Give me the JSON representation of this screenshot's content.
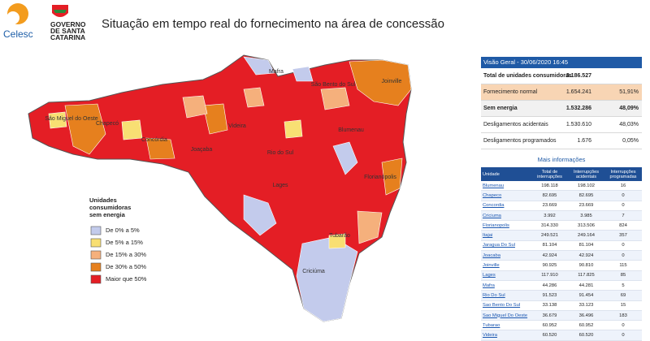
{
  "header": {
    "brand": "Celesc",
    "government": [
      "GOVERNO",
      "DE SANTA",
      "CATARINA"
    ],
    "title": "Situação em tempo real do fornecimento na área de concessão"
  },
  "map": {
    "labels": [
      "Mafra",
      "São Bento do Sul",
      "Joinville",
      "São Miguel do Oeste",
      "Chapecó",
      "Concórdia",
      "Joaçaba",
      "Videira",
      "Rio do Sul",
      "Blumenau",
      "Florianópolis",
      "Lages",
      "Tubarão",
      "Criciúma"
    ],
    "legend": {
      "title": [
        "Unidades",
        "consumidoras",
        "sem energia"
      ],
      "items": [
        {
          "label": "De 0% a 5%",
          "color": "#c3cbec"
        },
        {
          "label": "De 5% a 15%",
          "color": "#f8df73"
        },
        {
          "label": "De 15% a 30%",
          "color": "#f5b07c"
        },
        {
          "label": "De 30% a 50%",
          "color": "#e6801e"
        },
        {
          "label": "Maior que 50%",
          "color": "#e41e25"
        }
      ]
    }
  },
  "overview": {
    "title": "Visão Geral - 30/06/2020 16:45",
    "rows": [
      [
        "Total de unidades consumidoras",
        "3.186.527"
      ],
      [
        "Fornecimento normal",
        "1.654.241",
        "51,91%"
      ],
      [
        "Sem energia",
        "1.532.286",
        "48,09%"
      ],
      [
        "Desligamentos acidentais",
        "1.530.610",
        "48,03%"
      ],
      [
        "Desligamentos programados",
        "1.676",
        "0,05%"
      ]
    ]
  },
  "details": {
    "link": "Mais informações",
    "columns": [
      "Unidade",
      "Total de interrupções",
      "Interrupções acidentais",
      "Interrupções programadas"
    ],
    "rows": [
      [
        "Blumenau",
        "198.118",
        "198.102",
        "16"
      ],
      [
        "Chapeco",
        "82.695",
        "82.695",
        "0"
      ],
      [
        "Concordia",
        "23.669",
        "23.669",
        "0"
      ],
      [
        "Criciuma",
        "3.992",
        "3.985",
        "7"
      ],
      [
        "Florianopolis",
        "314.330",
        "313.506",
        "824"
      ],
      [
        "Itajai",
        "249.521",
        "249.164",
        "357"
      ],
      [
        "Jaragua Do Sul",
        "81.104",
        "81.104",
        "0"
      ],
      [
        "Joacaba",
        "42.924",
        "42.924",
        "0"
      ],
      [
        "Joinville",
        "90.925",
        "90.810",
        "115"
      ],
      [
        "Lages",
        "117.910",
        "117.825",
        "85"
      ],
      [
        "Mafra",
        "44.286",
        "44.281",
        "5"
      ],
      [
        "Rio Do Sul",
        "91.523",
        "91.454",
        "69"
      ],
      [
        "Sao Bento Do Sul",
        "33.138",
        "33.123",
        "15"
      ],
      [
        "Sao Miguel Do Oeste",
        "36.679",
        "36.496",
        "183"
      ],
      [
        "Tubarao",
        "60.952",
        "60.952",
        "0"
      ],
      [
        "Videira",
        "60.520",
        "60.520",
        "0"
      ]
    ]
  }
}
